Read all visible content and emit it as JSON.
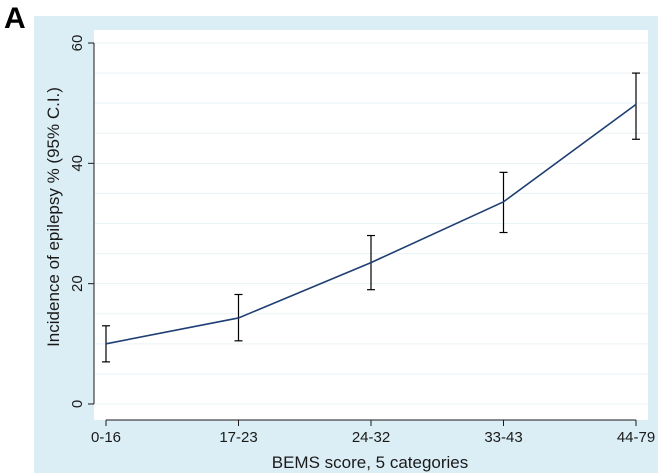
{
  "panel_label": "A",
  "chart_data": {
    "type": "line",
    "title": "",
    "xlabel": "BEMS score, 5 categories",
    "ylabel": "Incidence of epilepsy % (95% C.I.)",
    "categories": [
      "0-16",
      "17-23",
      "24-32",
      "33-43",
      "44-79"
    ],
    "series": [
      {
        "values": [
          10.0,
          14.3,
          23.5,
          33.6,
          49.8
        ],
        "ci_lower": [
          7.0,
          10.5,
          19.0,
          28.5,
          44.0
        ],
        "ci_upper": [
          13.0,
          18.2,
          28.0,
          38.5,
          55.0
        ]
      }
    ],
    "ylim": [
      0,
      60
    ],
    "yticks": [
      0,
      20,
      40,
      60
    ],
    "grid": true,
    "legend": "none",
    "colors": {
      "figure_background": "#dbeef5",
      "plot_background": "#ffffff",
      "line": "#1f3f73",
      "error_bars": "#000000",
      "gridlines": "#eaf3f6"
    }
  }
}
